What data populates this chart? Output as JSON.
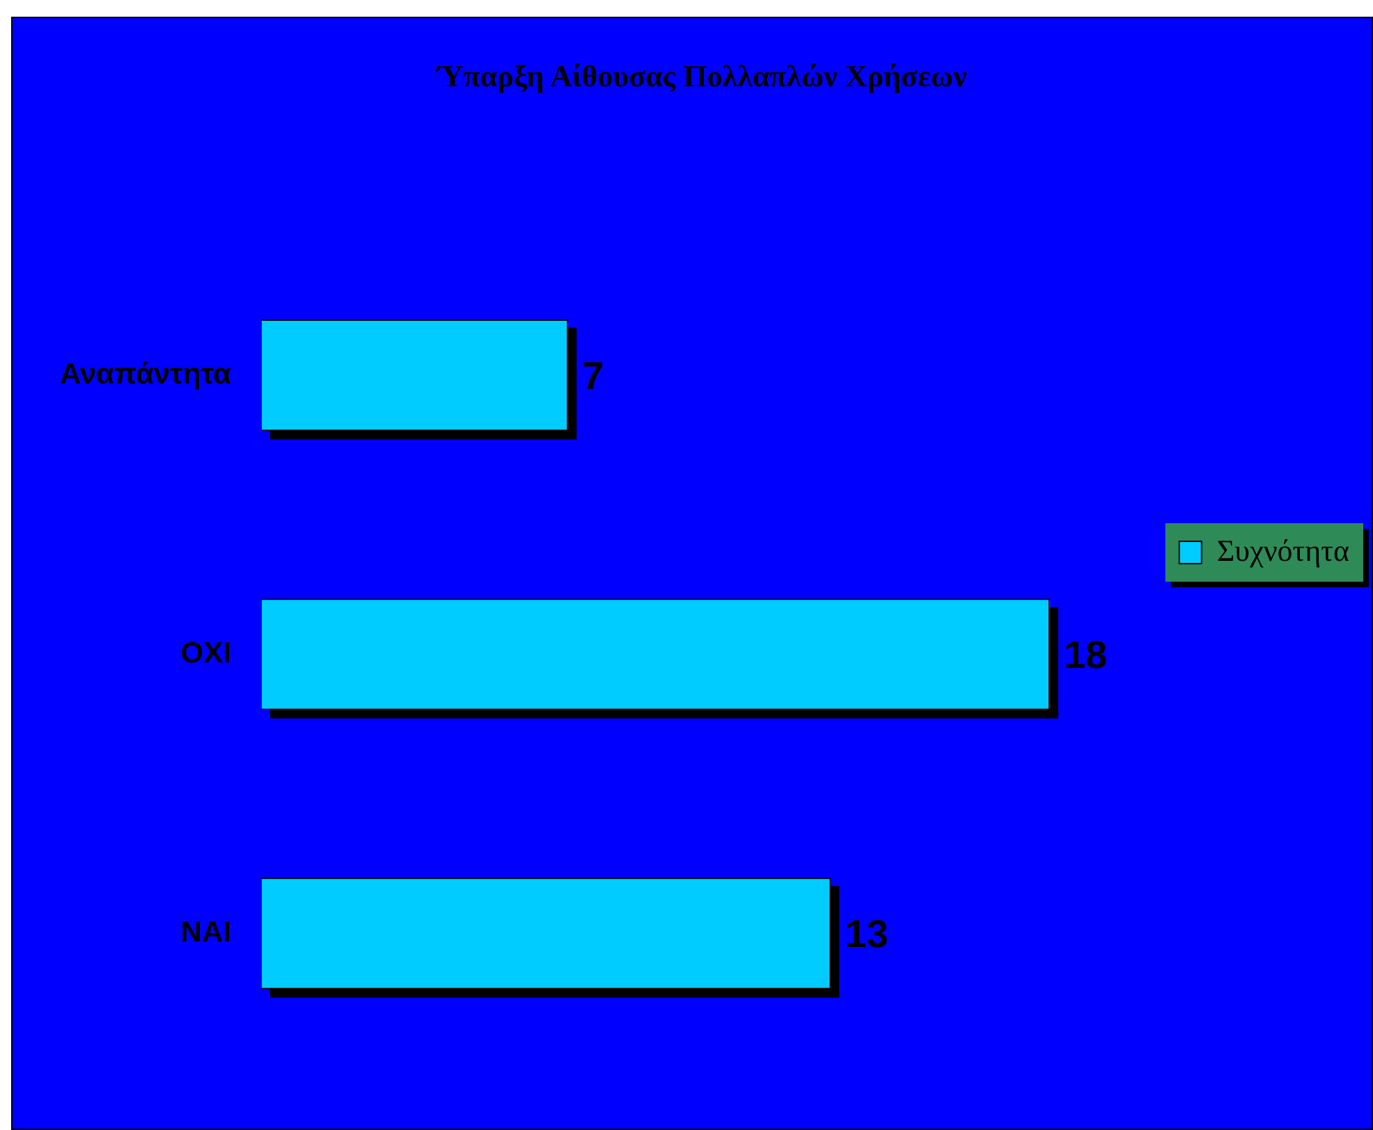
{
  "chart_data": {
    "type": "bar",
    "orientation": "horizontal",
    "title": "Ύπαρξη Αίθουσας Πολλαπλών Χρήσεων",
    "categories": [
      "Αναπάντητα",
      "ΟΧΙ",
      "ΝΑΙ"
    ],
    "series": [
      {
        "name": "Συχνότητα",
        "color": "#00ccff",
        "values": [
          7,
          18,
          13
        ]
      }
    ],
    "data_labels": true,
    "legend": "right"
  }
}
